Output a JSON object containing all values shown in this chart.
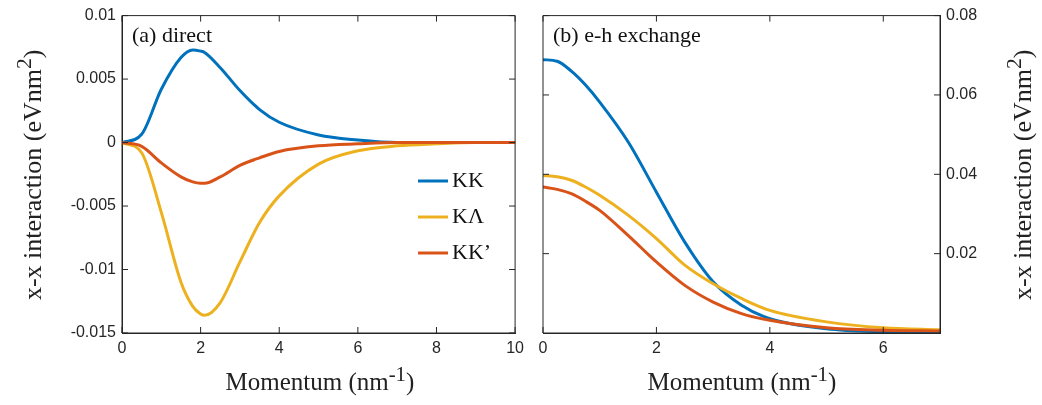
{
  "chart_data": [
    {
      "type": "line",
      "xlabel": "Momentum (nm$^{-1}$)",
      "ylabel": "x-x interaction (eVnm$^{2}$)",
      "annotations": [
        "(a) direct"
      ],
      "legend": "bottom right",
      "marker": "none",
      "grid": false,
      "x": [
        0,
        0.5,
        1,
        1.5,
        1.8,
        2,
        2.1,
        2.5,
        3,
        3.5,
        4,
        5,
        6,
        7,
        8,
        9,
        10
      ],
      "xlim": [
        0,
        10
      ],
      "xticks": [
        0,
        2,
        4,
        6,
        8,
        10
      ],
      "ylim": [
        -0.015,
        0.01
      ],
      "yticks": [
        -0.015,
        -0.01,
        -0.005,
        0,
        0.005,
        0.01
      ],
      "series": [
        {
          "name": "KK",
          "color": "#0072bd",
          "values": [
            0,
            0.00065,
            0.0042,
            0.0067,
            0.0073,
            0.0072,
            0.0071,
            0.0059,
            0.0041,
            0.0026,
            0.0016,
            0.0006,
            0.0002,
            0,
            0,
            null,
            null
          ]
        },
        {
          "name": "KΛ",
          "color": "#edb120",
          "values": [
            0,
            -0.0008,
            -0.0055,
            -0.011,
            -0.0129,
            -0.0135,
            -0.0136,
            -0.0126,
            -0.0094,
            -0.0063,
            -0.0042,
            -0.0017,
            -0.00065,
            -0.00026,
            -0.0001,
            0,
            0
          ]
        },
        {
          "name": "KK’",
          "color": "#d95319",
          "values": [
            0,
            -0.0003,
            -0.0016,
            -0.0027,
            -0.0031,
            -0.0032,
            -0.0032,
            -0.0027,
            -0.0018,
            -0.0012,
            -0.0007,
            -0.00026,
            -0.0001,
            0,
            0,
            0,
            0
          ]
        }
      ]
    },
    {
      "type": "line",
      "xlabel": "Momentum (nm$^{-1}$)",
      "y2label": "x-x interaction (eVnm$^{2}$)",
      "annotations": [
        "(b) e-h exchange"
      ],
      "marker": "none",
      "grid": false,
      "x": [
        0,
        0.25,
        0.5,
        0.75,
        1,
        1.5,
        2,
        2.5,
        3,
        3.5,
        4,
        5,
        6,
        7
      ],
      "xlim": [
        0,
        7
      ],
      "xticks": [
        0,
        2,
        4,
        6
      ],
      "y2lim": [
        0,
        0.08
      ],
      "y2ticks": [
        0.02,
        0.04,
        0.06,
        0.08
      ],
      "series": [
        {
          "color": "#0072bd",
          "axis": "y2",
          "values": [
            0.0689,
            0.0685,
            0.066,
            0.0625,
            0.0582,
            0.0482,
            0.0355,
            0.0229,
            0.0129,
            0.007,
            0.0036,
            0.0011,
            0.0003,
            0.0001
          ]
        },
        {
          "color": "#edb120",
          "axis": "y2",
          "values": [
            0.0397,
            0.0394,
            0.0385,
            0.0368,
            0.0347,
            0.0297,
            0.0238,
            0.0171,
            0.0124,
            0.0087,
            0.0057,
            0.0028,
            0.0013,
            0.0008
          ]
        },
        {
          "color": "#d95319",
          "axis": "y2",
          "values": [
            0.0368,
            0.0362,
            0.0351,
            0.0332,
            0.0309,
            0.0246,
            0.0179,
            0.012,
            0.0078,
            0.0049,
            0.0032,
            0.0013,
            0.0007,
            0.0005
          ]
        }
      ]
    }
  ]
}
